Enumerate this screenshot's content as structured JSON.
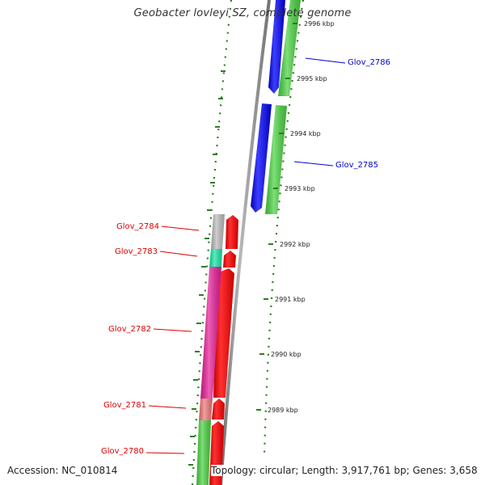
{
  "title": "Geobacter lovleyi SZ, complete genome",
  "footer": {
    "accession": "Accession: NC_010814",
    "stats": "Topology: circular; Length: 3,917,761 bp; Genes: 3,658"
  },
  "colors": {
    "forward_label": "#0000cc",
    "reverse_label": "#dd0000",
    "backbone": "#8c8c8c",
    "tick": "#2f7d1c"
  },
  "ticks": [
    {
      "label": "2996 kbp"
    },
    {
      "label": "2995 kbp"
    },
    {
      "label": "2994 kbp"
    },
    {
      "label": "2993 kbp"
    },
    {
      "label": "2992 kbp"
    },
    {
      "label": "2991 kbp"
    },
    {
      "label": "2990 kbp"
    },
    {
      "label": "2989 kbp"
    }
  ],
  "genes": [
    {
      "name": "Glov_2786",
      "strand": "forward",
      "cog_color": "#4cd444"
    },
    {
      "name": "Glov_2785",
      "strand": "forward",
      "cog_color": "#4cd444"
    },
    {
      "name": "Glov_2784",
      "strand": "reverse",
      "cog_color": "#bdbdbd"
    },
    {
      "name": "Glov_2783",
      "strand": "reverse",
      "cog_color": "#1ae8a8"
    },
    {
      "name": "Glov_2782",
      "strand": "reverse",
      "cog_color": "#e8209a"
    },
    {
      "name": "Glov_2781",
      "strand": "reverse",
      "cog_color": "#f07a7a"
    },
    {
      "name": "Glov_2780",
      "strand": "reverse",
      "cog_color": "#4cd444"
    }
  ]
}
